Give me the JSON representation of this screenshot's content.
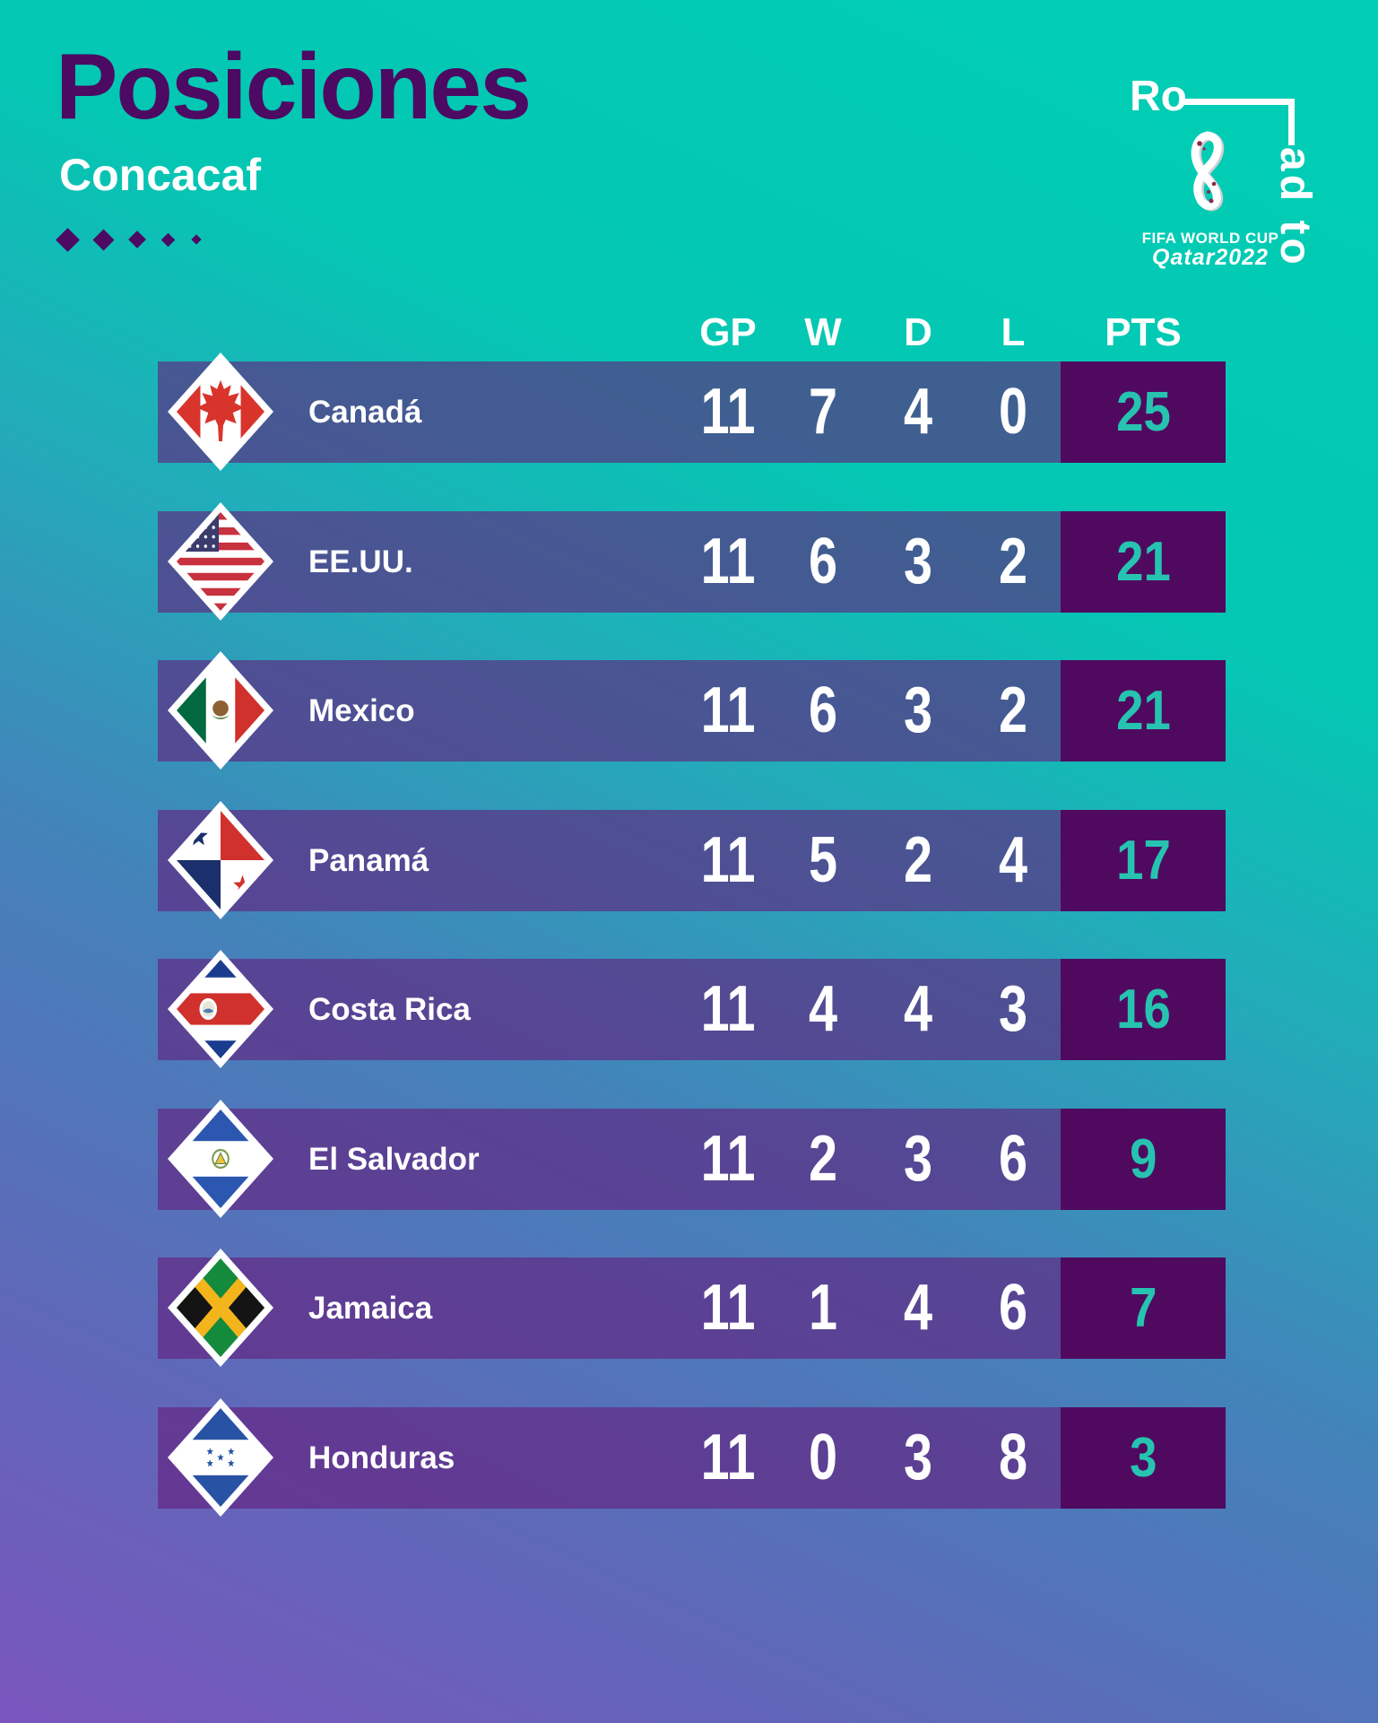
{
  "header": {
    "title": "Posiciones",
    "subtitle": "Concacaf"
  },
  "road_logo": {
    "ro": "Ro",
    "ad_to": "ad to",
    "fifa": "FIFA WORLD CUP",
    "qatar": "Qatar2022"
  },
  "table": {
    "columns": [
      "GP",
      "W",
      "D",
      "L",
      "PTS"
    ],
    "rows": [
      {
        "team": "Canadá",
        "flag": "canada",
        "gp": "11",
        "w": "7",
        "d": "4",
        "l": "0",
        "pts": "25"
      },
      {
        "team": "EE.UU.",
        "flag": "usa",
        "gp": "11",
        "w": "6",
        "d": "3",
        "l": "2",
        "pts": "21"
      },
      {
        "team": "Mexico",
        "flag": "mexico",
        "gp": "11",
        "w": "6",
        "d": "3",
        "l": "2",
        "pts": "21"
      },
      {
        "team": "Panamá",
        "flag": "panama",
        "gp": "11",
        "w": "5",
        "d": "2",
        "l": "4",
        "pts": "17"
      },
      {
        "team": "Costa Rica",
        "flag": "costa-rica",
        "gp": "11",
        "w": "4",
        "d": "4",
        "l": "3",
        "pts": "16"
      },
      {
        "team": "El Salvador",
        "flag": "el-salvador",
        "gp": "11",
        "w": "2",
        "d": "3",
        "l": "6",
        "pts": "9"
      },
      {
        "team": "Jamaica",
        "flag": "jamaica",
        "gp": "11",
        "w": "1",
        "d": "4",
        "l": "6",
        "pts": "7"
      },
      {
        "team": "Honduras",
        "flag": "honduras",
        "gp": "11",
        "w": "0",
        "d": "3",
        "l": "8",
        "pts": "3"
      }
    ]
  },
  "chart_data": {
    "type": "table",
    "title": "Posiciones",
    "subtitle": "Concacaf",
    "columns": [
      "GP",
      "W",
      "D",
      "L",
      "PTS"
    ],
    "rows": [
      {
        "team": "Canadá",
        "values": [
          11,
          7,
          4,
          0,
          25
        ]
      },
      {
        "team": "EE.UU.",
        "values": [
          11,
          6,
          3,
          2,
          21
        ]
      },
      {
        "team": "Mexico",
        "values": [
          11,
          6,
          3,
          2,
          21
        ]
      },
      {
        "team": "Panamá",
        "values": [
          11,
          5,
          2,
          4,
          17
        ]
      },
      {
        "team": "Costa Rica",
        "values": [
          11,
          4,
          4,
          3,
          16
        ]
      },
      {
        "team": "El Salvador",
        "values": [
          11,
          2,
          3,
          6,
          9
        ]
      },
      {
        "team": "Jamaica",
        "values": [
          11,
          1,
          4,
          6,
          7
        ]
      },
      {
        "team": "Honduras",
        "values": [
          11,
          0,
          3,
          8,
          3
        ]
      }
    ]
  },
  "colors": {
    "background_teal": "#00ceb5",
    "background_purple": "#7a55bd",
    "title_purple": "#4c0a63",
    "points_box_purple": "#4f0a60",
    "points_text_teal": "#26c4b0",
    "row_text": "#ffffff"
  }
}
